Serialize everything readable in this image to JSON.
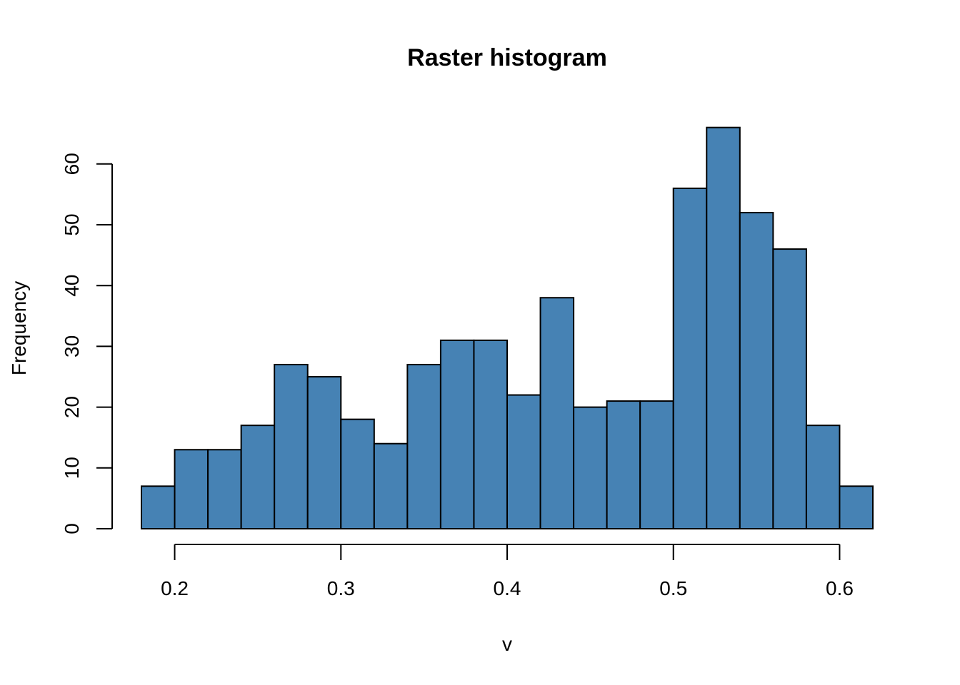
{
  "chart_data": {
    "type": "bar",
    "title": "Raster histogram",
    "xlabel": "v",
    "ylabel": "Frequency",
    "bar_color": "#4682B4",
    "bin_width": 0.02,
    "bins": [
      {
        "start": 0.18,
        "end": 0.2,
        "count": 7
      },
      {
        "start": 0.2,
        "end": 0.22,
        "count": 13
      },
      {
        "start": 0.22,
        "end": 0.24,
        "count": 13
      },
      {
        "start": 0.24,
        "end": 0.26,
        "count": 17
      },
      {
        "start": 0.26,
        "end": 0.28,
        "count": 27
      },
      {
        "start": 0.28,
        "end": 0.3,
        "count": 25
      },
      {
        "start": 0.3,
        "end": 0.32,
        "count": 18
      },
      {
        "start": 0.32,
        "end": 0.34,
        "count": 14
      },
      {
        "start": 0.34,
        "end": 0.36,
        "count": 27
      },
      {
        "start": 0.36,
        "end": 0.38,
        "count": 31
      },
      {
        "start": 0.38,
        "end": 0.4,
        "count": 31
      },
      {
        "start": 0.4,
        "end": 0.42,
        "count": 22
      },
      {
        "start": 0.42,
        "end": 0.44,
        "count": 38
      },
      {
        "start": 0.44,
        "end": 0.46,
        "count": 20
      },
      {
        "start": 0.46,
        "end": 0.48,
        "count": 21
      },
      {
        "start": 0.48,
        "end": 0.5,
        "count": 21
      },
      {
        "start": 0.5,
        "end": 0.52,
        "count": 56
      },
      {
        "start": 0.52,
        "end": 0.54,
        "count": 66
      },
      {
        "start": 0.54,
        "end": 0.56,
        "count": 52
      },
      {
        "start": 0.56,
        "end": 0.58,
        "count": 46
      },
      {
        "start": 0.58,
        "end": 0.6,
        "count": 17
      },
      {
        "start": 0.6,
        "end": 0.62,
        "count": 7
      }
    ],
    "x_ticks": [
      0.2,
      0.3,
      0.4,
      0.5,
      0.6
    ],
    "x_tick_labels": [
      "0.2",
      "0.3",
      "0.4",
      "0.5",
      "0.6"
    ],
    "y_ticks": [
      0,
      10,
      20,
      30,
      40,
      50,
      60
    ],
    "y_tick_labels": [
      "0",
      "10",
      "20",
      "30",
      "40",
      "50",
      "60"
    ],
    "xlim": [
      0.18,
      0.62
    ],
    "ylim": [
      0,
      66
    ],
    "grid": false,
    "legend": "none"
  }
}
